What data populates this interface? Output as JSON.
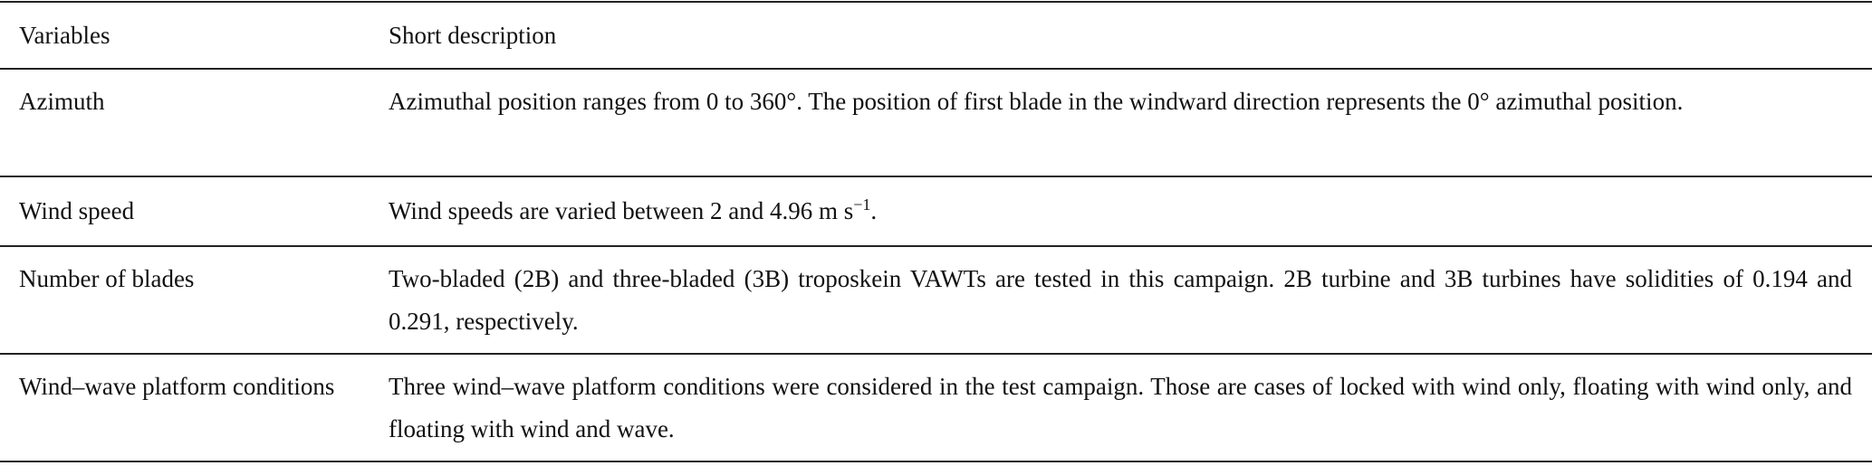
{
  "table": {
    "headers": [
      "Variables",
      "Short description"
    ],
    "rows": [
      {
        "variable": "Azimuth",
        "description": "Azimuthal position ranges from 0 to 360°. The position of first blade in the windward direction represents the 0° azimuthal position."
      },
      {
        "variable": "Wind speed",
        "description": "Wind speeds are varied between 2 and 4.96 m s",
        "description_sup": "−1",
        "description_end": "."
      },
      {
        "variable": "Number of blades",
        "description": "Two-bladed (2B) and three-bladed (3B) troposkein VAWTs are tested in this campaign. 2B turbine and 3B turbines have solidities of 0.194 and 0.291, respectively."
      },
      {
        "variable": "Wind–wave platform conditions",
        "description": "Three wind–wave platform conditions were considered in the test campaign. Those are cases of locked with wind only, floating with wind only, and floating with wind and wave."
      }
    ]
  }
}
